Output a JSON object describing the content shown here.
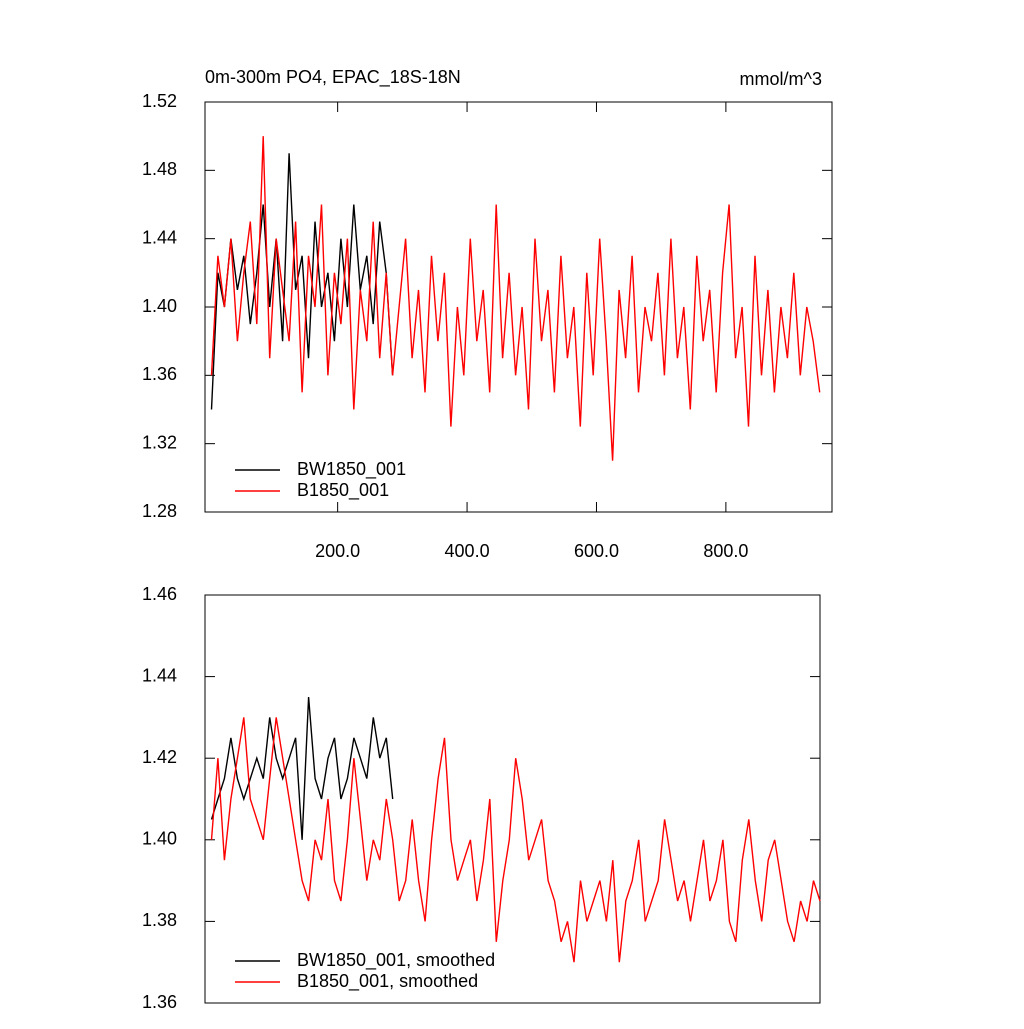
{
  "chart_data": [
    {
      "type": "line",
      "title": "0m-300m PO4, EPAC_18S-18N",
      "units": "mmol/m^3",
      "xlim": [
        -5,
        964
      ],
      "xticks": [
        {
          "value": 200,
          "label": "200.0"
        },
        {
          "value": 400,
          "label": "400.0"
        },
        {
          "value": 600,
          "label": "600.0"
        },
        {
          "value": 800,
          "label": "800.0"
        }
      ],
      "ylim": [
        1.28,
        1.52
      ],
      "yticks": [
        1.28,
        1.32,
        1.36,
        {
          "value": 1.4,
          "label": "1.40"
        },
        1.44,
        1.48,
        1.52
      ],
      "legend": "lower left",
      "series": [
        {
          "name": "BW1850_001",
          "color": "#000000",
          "x": [
            5,
            15,
            25,
            35,
            45,
            55,
            65,
            75,
            85,
            95,
            105,
            115,
            125,
            135,
            145,
            155,
            165,
            175,
            185,
            195,
            205,
            215,
            225,
            235,
            245,
            255,
            265,
            275,
            285
          ],
          "values": [
            1.34,
            1.42,
            1.4,
            1.44,
            1.41,
            1.43,
            1.39,
            1.42,
            1.46,
            1.4,
            1.44,
            1.38,
            1.49,
            1.41,
            1.43,
            1.37,
            1.45,
            1.4,
            1.42,
            1.38,
            1.44,
            1.4,
            1.46,
            1.41,
            1.43,
            1.39,
            1.45,
            1.42,
            1.36
          ]
        },
        {
          "name": "B1850_001",
          "color": "#ff0000",
          "x": [
            5,
            15,
            25,
            35,
            45,
            55,
            65,
            75,
            85,
            95,
            105,
            115,
            125,
            135,
            145,
            155,
            165,
            175,
            185,
            195,
            205,
            215,
            225,
            235,
            245,
            255,
            265,
            275,
            285,
            295,
            305,
            315,
            325,
            335,
            345,
            355,
            365,
            375,
            385,
            395,
            405,
            415,
            425,
            435,
            445,
            455,
            465,
            475,
            485,
            495,
            505,
            515,
            525,
            535,
            545,
            555,
            565,
            575,
            585,
            595,
            605,
            615,
            625,
            635,
            645,
            655,
            665,
            675,
            685,
            695,
            705,
            715,
            725,
            735,
            745,
            755,
            765,
            775,
            785,
            795,
            805,
            815,
            825,
            835,
            845,
            855,
            865,
            875,
            885,
            895,
            905,
            915,
            925,
            935,
            945
          ],
          "values": [
            1.36,
            1.43,
            1.4,
            1.44,
            1.38,
            1.42,
            1.45,
            1.39,
            1.5,
            1.37,
            1.44,
            1.41,
            1.38,
            1.45,
            1.35,
            1.43,
            1.4,
            1.46,
            1.36,
            1.42,
            1.39,
            1.44,
            1.34,
            1.41,
            1.38,
            1.45,
            1.37,
            1.42,
            1.36,
            1.4,
            1.44,
            1.37,
            1.41,
            1.35,
            1.43,
            1.38,
            1.42,
            1.33,
            1.4,
            1.36,
            1.44,
            1.38,
            1.41,
            1.35,
            1.46,
            1.37,
            1.42,
            1.36,
            1.4,
            1.34,
            1.44,
            1.38,
            1.41,
            1.35,
            1.43,
            1.37,
            1.4,
            1.33,
            1.42,
            1.36,
            1.44,
            1.38,
            1.31,
            1.41,
            1.37,
            1.43,
            1.35,
            1.4,
            1.38,
            1.42,
            1.36,
            1.44,
            1.37,
            1.4,
            1.34,
            1.43,
            1.38,
            1.41,
            1.35,
            1.42,
            1.46,
            1.37,
            1.4,
            1.33,
            1.43,
            1.36,
            1.41,
            1.35,
            1.4,
            1.37,
            1.42,
            1.36,
            1.4,
            1.38,
            1.35
          ]
        }
      ]
    },
    {
      "type": "line",
      "xlim": [
        -5,
        945
      ],
      "ylim": [
        1.36,
        1.46
      ],
      "yticks": [
        1.36,
        1.38,
        {
          "value": 1.4,
          "label": "1.40"
        },
        1.42,
        1.44,
        1.46
      ],
      "legend": "lower left",
      "series": [
        {
          "name": "BW1850_001, smoothed",
          "color": "#000000",
          "x": [
            5,
            15,
            25,
            35,
            45,
            55,
            65,
            75,
            85,
            95,
            105,
            115,
            125,
            135,
            145,
            155,
            165,
            175,
            185,
            195,
            205,
            215,
            225,
            235,
            245,
            255,
            265,
            275,
            285
          ],
          "values": [
            1.405,
            1.41,
            1.415,
            1.425,
            1.415,
            1.41,
            1.415,
            1.42,
            1.415,
            1.43,
            1.42,
            1.415,
            1.42,
            1.425,
            1.4,
            1.435,
            1.415,
            1.41,
            1.42,
            1.425,
            1.41,
            1.415,
            1.425,
            1.42,
            1.415,
            1.43,
            1.42,
            1.425,
            1.41
          ]
        },
        {
          "name": "B1850_001, smoothed",
          "color": "#ff0000",
          "x": [
            5,
            15,
            25,
            35,
            45,
            55,
            65,
            75,
            85,
            95,
            105,
            115,
            125,
            135,
            145,
            155,
            165,
            175,
            185,
            195,
            205,
            215,
            225,
            235,
            245,
            255,
            265,
            275,
            285,
            295,
            305,
            315,
            325,
            335,
            345,
            355,
            365,
            375,
            385,
            395,
            405,
            415,
            425,
            435,
            445,
            455,
            465,
            475,
            485,
            495,
            505,
            515,
            525,
            535,
            545,
            555,
            565,
            575,
            585,
            595,
            605,
            615,
            625,
            635,
            645,
            655,
            665,
            675,
            685,
            695,
            705,
            715,
            725,
            735,
            745,
            755,
            765,
            775,
            785,
            795,
            805,
            815,
            825,
            835,
            845,
            855,
            865,
            875,
            885,
            895,
            905,
            915,
            925,
            935,
            945
          ],
          "values": [
            1.4,
            1.42,
            1.395,
            1.41,
            1.42,
            1.43,
            1.41,
            1.405,
            1.4,
            1.415,
            1.43,
            1.42,
            1.41,
            1.4,
            1.39,
            1.385,
            1.4,
            1.395,
            1.41,
            1.39,
            1.385,
            1.4,
            1.42,
            1.405,
            1.39,
            1.4,
            1.395,
            1.41,
            1.4,
            1.385,
            1.39,
            1.405,
            1.39,
            1.38,
            1.4,
            1.415,
            1.425,
            1.4,
            1.39,
            1.395,
            1.4,
            1.385,
            1.395,
            1.41,
            1.375,
            1.39,
            1.4,
            1.42,
            1.41,
            1.395,
            1.4,
            1.405,
            1.39,
            1.385,
            1.375,
            1.38,
            1.37,
            1.39,
            1.38,
            1.385,
            1.39,
            1.38,
            1.395,
            1.37,
            1.385,
            1.39,
            1.4,
            1.38,
            1.385,
            1.39,
            1.405,
            1.395,
            1.385,
            1.39,
            1.38,
            1.39,
            1.4,
            1.385,
            1.39,
            1.4,
            1.38,
            1.375,
            1.395,
            1.405,
            1.39,
            1.38,
            1.395,
            1.4,
            1.39,
            1.38,
            1.375,
            1.385,
            1.38,
            1.39,
            1.385
          ]
        }
      ]
    }
  ]
}
